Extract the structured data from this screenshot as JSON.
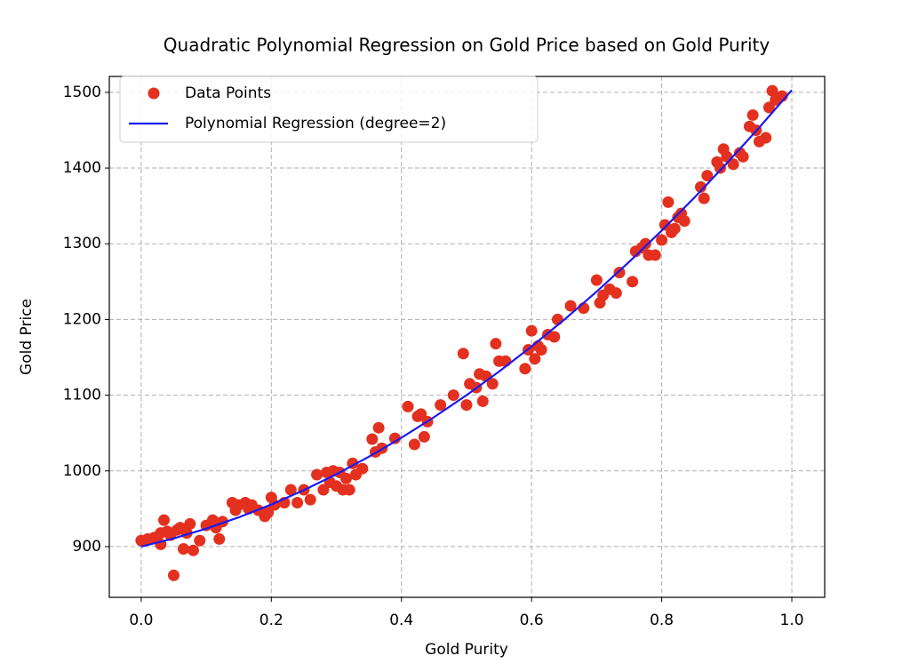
{
  "chart_data": {
    "type": "scatter",
    "title": "Quadratic Polynomial Regression on Gold Price based on Gold Purity",
    "x_label": "Gold Purity",
    "y_label": "Gold Price",
    "xlim": [
      -0.049,
      1.0505
    ],
    "ylim": [
      833,
      1521
    ],
    "xticks": [
      {
        "value": 0,
        "label": "0.0"
      },
      0.2,
      0.4,
      0.6,
      0.8,
      {
        "value": 1,
        "label": "1.0"
      }
    ],
    "yticks": [
      900,
      1000,
      1100,
      1200,
      1300,
      1400,
      1500
    ],
    "grid": true,
    "legend": "upper-left",
    "series": [
      {
        "name": "Data Points",
        "type": "scatter",
        "color": "#e3301f",
        "x": [
          0.0,
          0.01,
          0.02,
          0.03,
          0.03,
          0.035,
          0.04,
          0.045,
          0.05,
          0.055,
          0.06,
          0.065,
          0.07,
          0.075,
          0.08,
          0.09,
          0.1,
          0.11,
          0.115,
          0.12,
          0.125,
          0.14,
          0.145,
          0.15,
          0.16,
          0.165,
          0.17,
          0.18,
          0.19,
          0.195,
          0.2,
          0.205,
          0.22,
          0.23,
          0.24,
          0.25,
          0.26,
          0.27,
          0.28,
          0.285,
          0.29,
          0.295,
          0.3,
          0.305,
          0.31,
          0.315,
          0.32,
          0.325,
          0.33,
          0.34,
          0.355,
          0.36,
          0.365,
          0.37,
          0.39,
          0.41,
          0.42,
          0.425,
          0.43,
          0.435,
          0.44,
          0.46,
          0.48,
          0.495,
          0.5,
          0.505,
          0.515,
          0.52,
          0.525,
          0.53,
          0.54,
          0.545,
          0.55,
          0.56,
          0.59,
          0.595,
          0.6,
          0.605,
          0.61,
          0.615,
          0.625,
          0.635,
          0.64,
          0.66,
          0.68,
          0.7,
          0.705,
          0.71,
          0.72,
          0.73,
          0.735,
          0.755,
          0.76,
          0.77,
          0.775,
          0.78,
          0.79,
          0.8,
          0.805,
          0.81,
          0.815,
          0.82,
          0.825,
          0.83,
          0.835,
          0.86,
          0.865,
          0.87,
          0.885,
          0.89,
          0.895,
          0.9,
          0.91,
          0.92,
          0.925,
          0.935,
          0.94,
          0.945,
          0.95,
          0.96,
          0.965,
          0.97,
          0.975,
          0.985
        ],
        "values": [
          908,
          910,
          912,
          918,
          903,
          935,
          920,
          915,
          862,
          922,
          925,
          897,
          918,
          930,
          895,
          908,
          928,
          935,
          925,
          910,
          933,
          958,
          948,
          955,
          958,
          950,
          955,
          948,
          940,
          945,
          965,
          955,
          958,
          975,
          958,
          975,
          962,
          995,
          975,
          998,
          985,
          1000,
          980,
          998,
          975,
          990,
          975,
          1010,
          995,
          1003,
          1042,
          1025,
          1057,
          1030,
          1043,
          1085,
          1035,
          1072,
          1075,
          1045,
          1065,
          1087,
          1100,
          1155,
          1087,
          1115,
          1110,
          1128,
          1092,
          1125,
          1115,
          1168,
          1145,
          1145,
          1135,
          1160,
          1185,
          1148,
          1165,
          1160,
          1180,
          1177,
          1200,
          1218,
          1215,
          1252,
          1222,
          1232,
          1240,
          1235,
          1262,
          1250,
          1290,
          1295,
          1300,
          1285,
          1285,
          1305,
          1325,
          1355,
          1315,
          1320,
          1335,
          1340,
          1330,
          1375,
          1360,
          1390,
          1408,
          1400,
          1425,
          1415,
          1405,
          1420,
          1415,
          1455,
          1470,
          1450,
          1435,
          1440,
          1480,
          1502,
          1490,
          1495
        ]
      },
      {
        "name": "Polynomial Regression (degree=2)",
        "type": "line",
        "color": "#1a1af0",
        "x": [
          0,
          0.05,
          0.1,
          0.15,
          0.2,
          0.25,
          0.3,
          0.35,
          0.4,
          0.45,
          0.5,
          0.55,
          0.6,
          0.65,
          0.7,
          0.75,
          0.8,
          0.85,
          0.9,
          0.95,
          1
        ],
        "values": [
          900,
          910.9,
          923.8,
          938.7,
          955.6,
          974.6,
          995.6,
          1018.7,
          1043.8,
          1070.9,
          1100,
          1131.2,
          1164.4,
          1199.6,
          1236.8,
          1276.1,
          1317.4,
          1360.8,
          1406.2,
          1453.6,
          1503
        ]
      }
    ]
  }
}
